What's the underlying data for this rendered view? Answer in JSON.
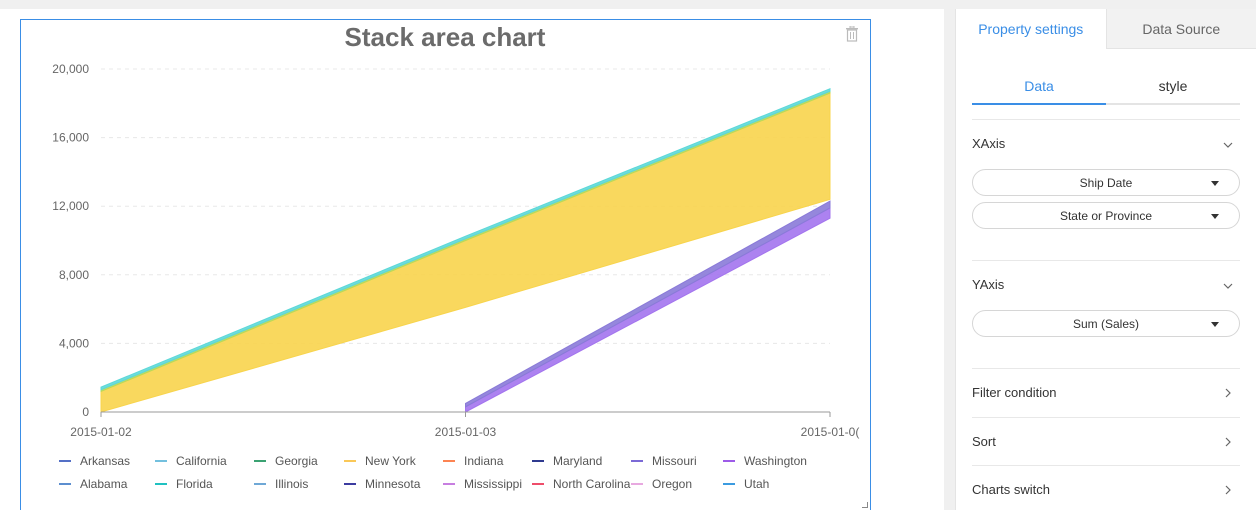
{
  "chart_card": {
    "trash_icon": "trash-icon"
  },
  "chart_data": {
    "type": "area",
    "stacked": true,
    "title": "Stack area chart",
    "categories": [
      "2015-01-02",
      "2015-01-03",
      "2015-01-0("
    ],
    "ylim": [
      0,
      20000
    ],
    "yticks": [
      0,
      4000,
      8000,
      12000,
      16000,
      20000
    ],
    "ytick_labels": [
      "0",
      "4,000",
      "8,000",
      "12,000",
      "16,000",
      "20,000"
    ],
    "grid": true,
    "legend_position": "bottom",
    "series": [
      {
        "name": "Arkansas",
        "color": "#5470c6",
        "values": [
          null,
          null,
          null
        ]
      },
      {
        "name": "California",
        "color": "#73c0de",
        "values": [
          null,
          null,
          null
        ]
      },
      {
        "name": "Georgia",
        "color": "#3ba272",
        "values": [
          null,
          null,
          null
        ]
      },
      {
        "name": "New York",
        "color": "#fac858",
        "values": [
          null,
          null,
          null
        ]
      },
      {
        "name": "Indiana",
        "color": "#fc8452",
        "values": [
          null,
          null,
          null
        ]
      },
      {
        "name": "Maryland",
        "color": "#2f3a8f",
        "values": [
          null,
          null,
          null
        ]
      },
      {
        "name": "Missouri",
        "color": "#7b6ad6",
        "values": [
          null,
          null,
          null
        ]
      },
      {
        "name": "Washington",
        "color": "#9d5be8",
        "values": [
          null,
          null,
          null
        ]
      },
      {
        "name": "Alabama",
        "color": "#5c8ecf",
        "values": [
          null,
          null,
          null
        ]
      },
      {
        "name": "Florida",
        "color": "#20c1c1",
        "values": [
          null,
          null,
          null
        ]
      },
      {
        "name": "Illinois",
        "color": "#6fa8d6",
        "values": [
          null,
          null,
          null
        ]
      },
      {
        "name": "Minnesota",
        "color": "#3c3ca0",
        "values": [
          null,
          null,
          null
        ]
      },
      {
        "name": "Mississippi",
        "color": "#c77ee0",
        "values": [
          null,
          null,
          null
        ]
      },
      {
        "name": "North Carolina",
        "color": "#ee4d6a",
        "values": [
          null,
          null,
          null
        ]
      },
      {
        "name": "Oregon",
        "color": "#e8a9e0",
        "values": [
          null,
          null,
          null
        ]
      },
      {
        "name": "Utah",
        "color": "#3b9be0",
        "values": [
          null,
          null,
          null
        ]
      }
    ],
    "visible_layers": [
      {
        "series": "New York",
        "color": "#f8d44c",
        "lower": [
          0,
          6100,
          12400
        ],
        "upper": [
          1200,
          10000,
          18600
        ]
      },
      {
        "series": "Georgia",
        "color": "#b8d95a",
        "lower": [
          1200,
          10000,
          18600
        ],
        "upper": [
          1300,
          10100,
          18700
        ]
      },
      {
        "series": "California",
        "color": "#5dd8d8",
        "lower": [
          1300,
          10100,
          18700
        ],
        "upper": [
          1450,
          10250,
          18850
        ]
      },
      {
        "series": "Washington",
        "color": "#a374ee",
        "lower": [
          null,
          0,
          11300
        ],
        "upper": [
          null,
          300,
          11900
        ]
      },
      {
        "series": "Missouri",
        "color": "#8a7ad8",
        "lower": [
          null,
          300,
          11900
        ],
        "upper": [
          null,
          500,
          12300
        ]
      }
    ]
  },
  "panel": {
    "tabs": [
      {
        "label": "Property settings",
        "active": true
      },
      {
        "label": "Data Source",
        "active": false
      }
    ],
    "subtabs": [
      {
        "label": "Data",
        "active": true
      },
      {
        "label": "style",
        "active": false
      }
    ],
    "xaxis": {
      "title": "XAxis",
      "fields": [
        "Ship Date",
        "State or Province"
      ]
    },
    "yaxis": {
      "title": "YAxis",
      "fields": [
        "Sum (Sales)"
      ]
    },
    "filter": {
      "title": "Filter condition"
    },
    "sort": {
      "title": "Sort"
    },
    "charts_switch": {
      "title": "Charts switch"
    }
  }
}
